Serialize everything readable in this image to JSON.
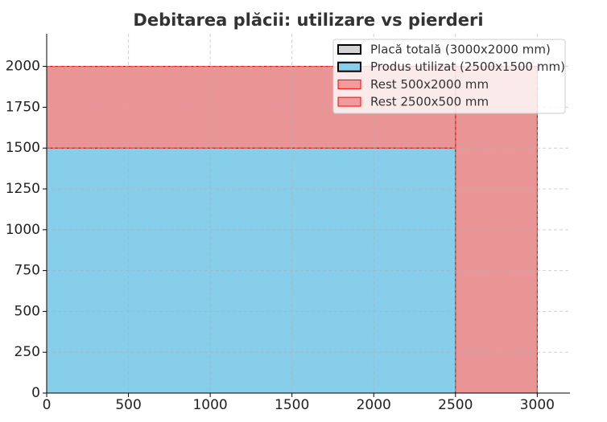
{
  "chart_data": {
    "type": "rect",
    "title": "Debitarea plăcii: utilizare vs pierderi",
    "series": [
      {
        "name": "Placă totală (3000x2000 mm)",
        "color": "#d3d3d3",
        "edgecolor": "#000000",
        "x": [
          0,
          3000
        ],
        "values": [
          0,
          2000
        ]
      },
      {
        "name": "Produs utilizat (2500x1500 mm)",
        "color": "#87ceeb",
        "edgecolor": "#000000",
        "x": [
          0,
          2500
        ],
        "values": [
          0,
          1500
        ]
      },
      {
        "name": "Rest 500x2000 mm",
        "color": "#f08080",
        "edgecolor": "#ff0000",
        "x": [
          2500,
          3000
        ],
        "values": [
          0,
          2000
        ]
      },
      {
        "name": "Rest 2500x500 mm",
        "color": "#f08080",
        "edgecolor": "#ff0000",
        "x": [
          0,
          2500
        ],
        "values": [
          1500,
          2000
        ]
      }
    ],
    "xlim": [
      0,
      3200
    ],
    "ylim": [
      0,
      2200
    ],
    "xticks": [
      0,
      500,
      1000,
      1500,
      2000,
      2500,
      3000
    ],
    "yticks": [
      0,
      250,
      500,
      750,
      1000,
      1250,
      1500,
      1750,
      2000
    ],
    "grid": true,
    "legend": "upper right"
  }
}
